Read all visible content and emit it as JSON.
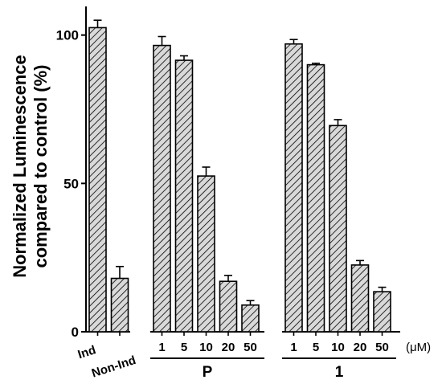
{
  "chart_data": {
    "type": "bar",
    "ylabel_line1": "Normalized Luminescence",
    "ylabel_line2": "compared to control (%)",
    "ylim": [
      0,
      110
    ],
    "yticks": [
      "0",
      "50",
      "100"
    ],
    "unit": "(μM)",
    "pattern": "diagonal-hatch",
    "colors": {
      "bar_fill": "#d9d9d9",
      "stroke": "#000000"
    },
    "groups": [
      {
        "label": "",
        "bars": [
          {
            "label": "Ind",
            "value": 102.5,
            "error": 2.5
          },
          {
            "label": "Non-Ind",
            "value": 18,
            "error": 4
          }
        ]
      },
      {
        "label": "P",
        "bars": [
          {
            "label": "1",
            "value": 96.5,
            "error": 3
          },
          {
            "label": "5",
            "value": 91.5,
            "error": 1.5
          },
          {
            "label": "10",
            "value": 52.5,
            "error": 3
          },
          {
            "label": "20",
            "value": 17,
            "error": 2
          },
          {
            "label": "50",
            "value": 9,
            "error": 1.5
          }
        ]
      },
      {
        "label": "1",
        "bars": [
          {
            "label": "1",
            "value": 97,
            "error": 1.5
          },
          {
            "label": "5",
            "value": 90,
            "error": 0.5
          },
          {
            "label": "10",
            "value": 69.5,
            "error": 2
          },
          {
            "label": "20",
            "value": 22.5,
            "error": 1.5
          },
          {
            "label": "50",
            "value": 13.5,
            "error": 1.5
          }
        ]
      }
    ]
  }
}
